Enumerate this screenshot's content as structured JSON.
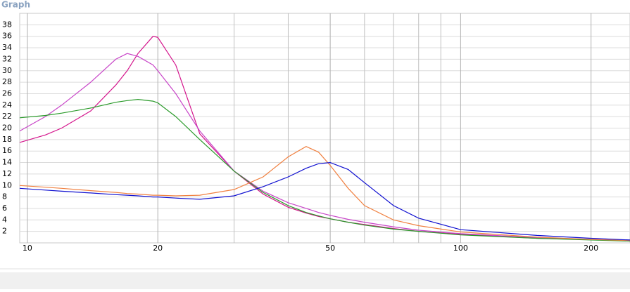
{
  "chart_data": {
    "type": "line",
    "title": "Graph",
    "x": [
      9.6,
      11,
      12,
      14,
      16,
      17,
      18,
      19.5,
      20,
      22,
      25,
      30,
      35,
      40,
      44,
      47,
      50,
      55,
      60,
      70,
      80,
      100,
      150,
      200,
      246
    ],
    "series": [
      {
        "color": "#d4148c",
        "values": [
          17.5,
          18.8,
          20,
          23,
          27.5,
          30,
          33,
          36,
          35.8,
          31,
          19,
          12.5,
          8.5,
          6.2,
          5.2,
          4.6,
          4.2,
          3.6,
          3.2,
          2.5,
          2,
          1.5,
          0.8,
          0.6,
          0.4
        ]
      },
      {
        "color": "#c846c8",
        "values": [
          19.5,
          22,
          24,
          28,
          32,
          33,
          32.5,
          31,
          30,
          26,
          19.5,
          12.5,
          9,
          7,
          6,
          5.3,
          4.8,
          4.1,
          3.6,
          2.8,
          2.2,
          1.6,
          0.9,
          0.6,
          0.4
        ]
      },
      {
        "color": "#2a9a2a",
        "values": [
          21.8,
          22.2,
          22.6,
          23.5,
          24.5,
          24.8,
          25,
          24.7,
          24.4,
          22,
          18,
          12.5,
          8.8,
          6.5,
          5.3,
          4.7,
          4.2,
          3.6,
          3.1,
          2.4,
          2,
          1.4,
          0.8,
          0.5,
          0.3
        ]
      },
      {
        "color": "#f08040",
        "values": [
          10,
          9.7,
          9.5,
          9.1,
          8.8,
          8.6,
          8.5,
          8.3,
          8.3,
          8.2,
          8.3,
          9.3,
          11.5,
          15,
          16.8,
          15.8,
          13.5,
          9.5,
          6.5,
          4,
          3,
          1.9,
          1,
          0.6,
          0.4
        ]
      },
      {
        "color": "#1010d0",
        "values": [
          9.5,
          9.2,
          9,
          8.7,
          8.4,
          8.3,
          8.2,
          8,
          8,
          7.8,
          7.6,
          8.2,
          9.8,
          11.5,
          13,
          13.8,
          14,
          12.8,
          10.5,
          6.5,
          4.3,
          2.3,
          1.3,
          0.8,
          0.5
        ]
      }
    ],
    "xlim": [
      9.6,
      246
    ],
    "xticks": [
      10,
      20,
      50,
      100,
      200
    ],
    "x_minor_grid": [
      30,
      40,
      60,
      70,
      80,
      90
    ],
    "xscale": "log",
    "ylim": [
      0,
      40
    ],
    "yticks": [
      2,
      4,
      6,
      8,
      10,
      12,
      14,
      16,
      18,
      20,
      22,
      24,
      26,
      28,
      30,
      32,
      34,
      36,
      38
    ],
    "grid": true
  }
}
